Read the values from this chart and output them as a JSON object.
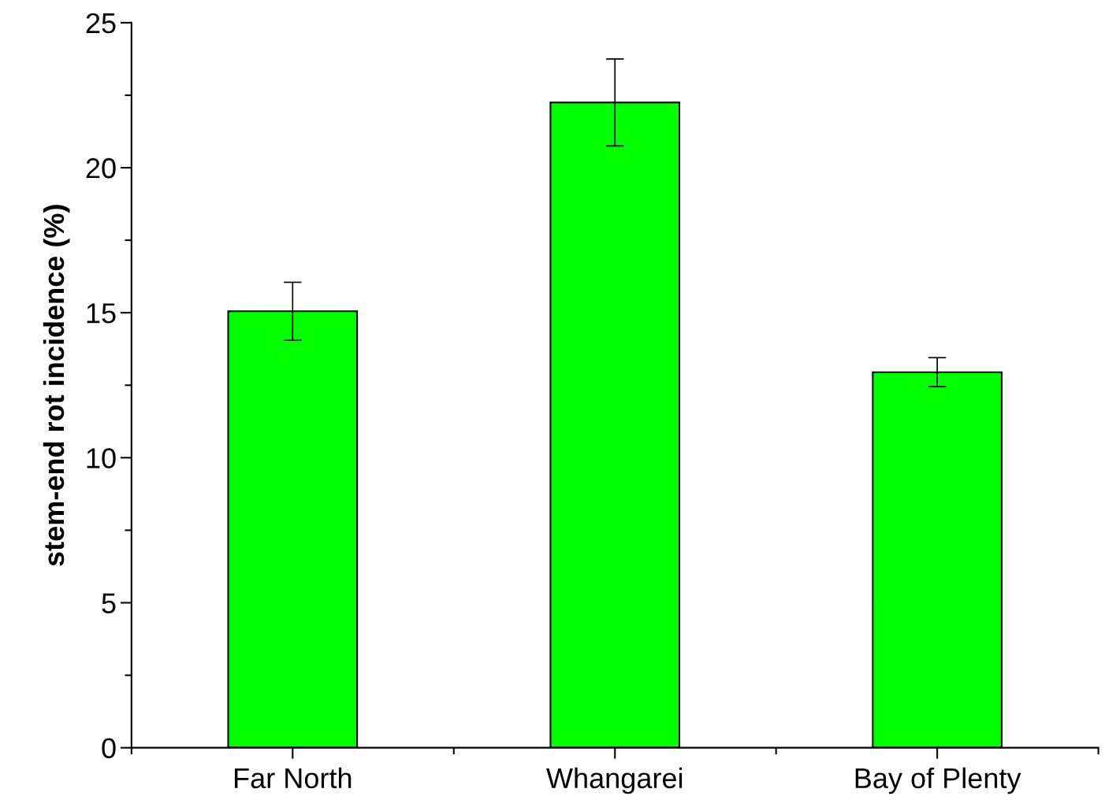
{
  "chart_data": {
    "type": "bar",
    "ylabel": "stem-end rot incidence (%)",
    "categories": [
      "Far North",
      "Whangarei",
      "Bay of Plenty"
    ],
    "values": [
      15.05,
      22.25,
      12.95
    ],
    "errors": [
      1.0,
      1.5,
      0.5
    ],
    "color": "#00ff00",
    "ylim": [
      0,
      25
    ],
    "yticks": [
      0,
      {
        "value": 2.5,
        "label": null
      },
      5,
      {
        "value": 7.5,
        "label": null
      },
      10,
      {
        "value": 12.5,
        "label": null
      },
      15,
      {
        "value": 17.5,
        "label": null
      },
      20,
      {
        "value": 22.5,
        "label": null
      },
      25
    ],
    "grid": false
  }
}
